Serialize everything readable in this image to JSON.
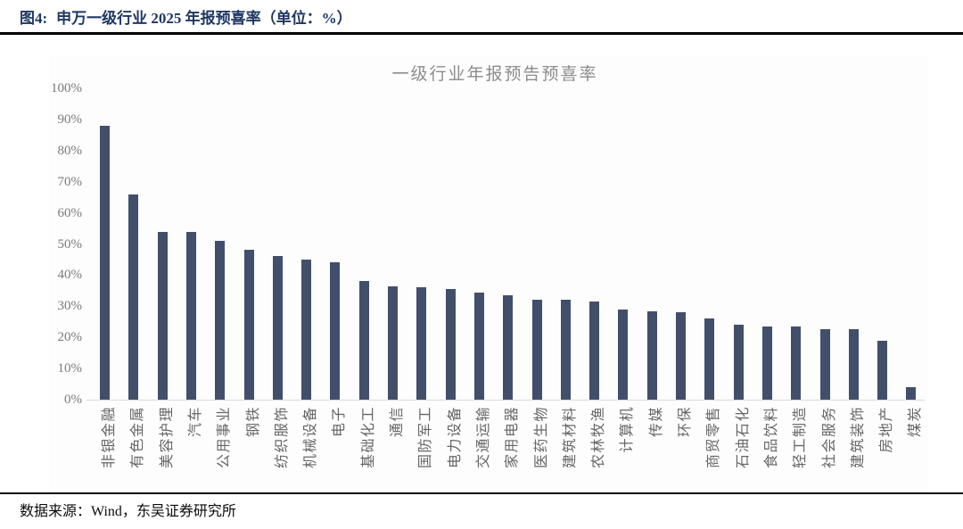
{
  "header": {
    "figure_label": "图4:",
    "title": "申万一级行业 2025 年报预喜率（单位：%）"
  },
  "chart_data": {
    "type": "bar",
    "title": "一级行业年报预告预喜率",
    "categories": [
      "非银金融",
      "有色金属",
      "美容护理",
      "汽车",
      "公用事业",
      "钢铁",
      "纺织服饰",
      "机械设备",
      "电子",
      "基础化工",
      "通信",
      "国防军工",
      "电力设备",
      "交通运输",
      "家用电器",
      "医药生物",
      "建筑材料",
      "农林牧渔",
      "计算机",
      "传媒",
      "环保",
      "商贸零售",
      "石油石化",
      "食品饮料",
      "轻工制造",
      "社会服务",
      "建筑装饰",
      "房地产",
      "煤炭"
    ],
    "values": [
      88,
      66,
      54,
      54,
      51,
      48,
      46,
      45,
      44,
      38,
      36.5,
      36,
      35.5,
      34.5,
      33.5,
      32,
      32,
      31.5,
      29,
      28.5,
      28,
      26,
      24,
      23.5,
      23.5,
      22.5,
      22.5,
      19,
      4
    ],
    "xlabel": "",
    "ylabel": "",
    "ylim": [
      0,
      100
    ],
    "ytick_step": 10,
    "ytick_suffix": "%",
    "grid": false,
    "legend": false,
    "bar_color": "#424F6B"
  },
  "footer": {
    "source": "数据来源：Wind，东吴证券研究所"
  },
  "colors": {
    "header_text": "#1F3864",
    "chart_title": "#8C8C8C",
    "tick_label": "#7A7A7A",
    "category_label": "#666666",
    "axis_line": "#D9D9D9",
    "rule": "#000000"
  }
}
